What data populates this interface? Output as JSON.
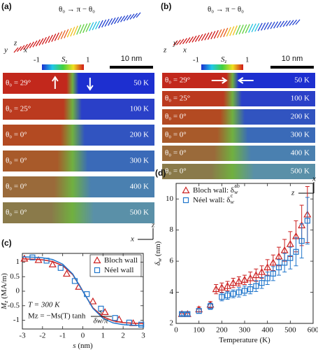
{
  "panel_a": {
    "label": "(a)",
    "formula": "θ₀ → π − θ₀",
    "colorbar": {
      "min": "-1",
      "symbol": "S",
      "sub": "z",
      "max": "1"
    },
    "scale": "10 nm",
    "axes_top": [
      "y",
      "z",
      "x"
    ],
    "axes_bottom": [
      "z",
      "x"
    ],
    "rows": [
      {
        "angle": "θ₀ = 29°",
        "temp": "50 K"
      },
      {
        "angle": "θ₀ = 25°",
        "temp": "100 K"
      },
      {
        "angle": "θ₀ = 0°",
        "temp": "200 K"
      },
      {
        "angle": "θ₀ = 0°",
        "temp": "300 K"
      },
      {
        "angle": "θ₀ = 0°",
        "temp": "400 K"
      },
      {
        "angle": "θ₀ = 0°",
        "temp": "500 K"
      }
    ]
  },
  "panel_b": {
    "label": "(b)",
    "formula": "θ₀ → π − θ₀",
    "colorbar": {
      "min": "-1",
      "symbol": "S",
      "sub": "z",
      "max": "1"
    },
    "scale": "10 nm",
    "axes_top": [
      "z",
      "y",
      "x"
    ],
    "axes_bottom": [
      "x",
      "z"
    ],
    "rows": [
      {
        "angle": "θ₀ = 29°",
        "temp": "50 K"
      },
      {
        "angle": "θ₀ = 25°",
        "temp": "100 K"
      },
      {
        "angle": "θ₀ = 0°",
        "temp": "200 K"
      },
      {
        "angle": "θ₀ = 0°",
        "temp": "300 K"
      },
      {
        "angle": "θ₀ = 0°",
        "temp": "400 K"
      },
      {
        "angle": "θ₀ = 0°",
        "temp": "500 K"
      }
    ]
  },
  "chart_data": [
    {
      "type": "scatter",
      "label": "(c)",
      "x_label": {
        "symbol": "s",
        "unit": " (nm)"
      },
      "y_label": {
        "symbol": "M",
        "sub": "z",
        "unit": " (MA/m)"
      },
      "xlim": [
        -3,
        3
      ],
      "xticks": [
        -3,
        -2,
        -1,
        0,
        1,
        2,
        3
      ],
      "ylim": [
        -1.3,
        1.3
      ],
      "yticks": [
        -1,
        -0.5,
        0,
        0.5,
        1
      ],
      "annotations": [
        "T = 300 K",
        "Mz = −Ms(T) tanh",
        "s",
        "δw/π"
      ],
      "legend": "upper right",
      "series": [
        {
          "name": "Bloch wall",
          "color": "#cc2222",
          "marker": "triangle",
          "x": [
            -2.9,
            -2.2,
            -1.5,
            -0.8,
            -0.2,
            0.5,
            1.1,
            1.8,
            2.5
          ],
          "values": [
            1.12,
            1.07,
            0.92,
            0.6,
            0.15,
            -0.35,
            -0.72,
            -0.97,
            -1.1
          ],
          "fit_x": [
            -3,
            -2.5,
            -2,
            -1.5,
            -1,
            -0.5,
            0,
            0.5,
            1,
            1.5,
            2,
            2.5,
            3
          ],
          "fit_values": [
            1.11,
            1.1,
            1.08,
            1.02,
            0.88,
            0.57,
            0,
            -0.57,
            -0.88,
            -1.02,
            -1.08,
            -1.1,
            -1.11
          ]
        },
        {
          "name": "Néel wall",
          "color": "#2277cc",
          "marker": "square",
          "x": [
            -2.5,
            -1.8,
            -1.1,
            -0.4,
            0.2,
            0.9,
            1.6,
            2.3,
            2.9
          ],
          "values": [
            1.16,
            1.05,
            0.8,
            0.35,
            -0.1,
            -0.6,
            -0.92,
            -1.08,
            -1.15
          ],
          "fit_x": [
            -3,
            -2.5,
            -2,
            -1.5,
            -1,
            -0.5,
            0,
            0.5,
            1,
            1.5,
            2,
            2.5,
            3
          ],
          "fit_values": [
            1.18,
            1.17,
            1.15,
            1.09,
            0.93,
            0.59,
            0,
            -0.59,
            -0.93,
            -1.09,
            -1.15,
            -1.17,
            -1.18
          ]
        }
      ]
    },
    {
      "type": "scatter",
      "label": "(d)",
      "x_label": {
        "symbol": "Temperature",
        "unit": " (K)"
      },
      "y_label": {
        "symbol": "δ",
        "sub": "w",
        "unit": " (nm)"
      },
      "xlim": [
        0,
        600
      ],
      "xticks": [
        0,
        100,
        200,
        300,
        400,
        500,
        600
      ],
      "ylim": [
        2,
        11
      ],
      "yticks": [
        2,
        4,
        6,
        8,
        10
      ],
      "legend": "upper left",
      "series": [
        {
          "name": "Bloch wall: δ",
          "name_sub": "w",
          "name_sup": "ab",
          "color": "#cc2222",
          "marker": "triangle",
          "x": [
            25,
            50,
            100,
            150,
            175,
            200,
            225,
            250,
            275,
            300,
            325,
            350,
            375,
            400,
            425,
            450,
            475,
            500,
            525,
            550,
            575
          ],
          "values": [
            2.6,
            2.6,
            2.9,
            3.2,
            4.2,
            4.3,
            4.4,
            4.6,
            4.7,
            4.8,
            4.9,
            5.1,
            5.3,
            5.6,
            5.9,
            6.3,
            6.7,
            7.1,
            7.6,
            8.3,
            9.0
          ],
          "errors": [
            0.15,
            0.15,
            0.15,
            0.2,
            0.3,
            0.3,
            0.3,
            0.3,
            0.3,
            0.3,
            0.4,
            0.4,
            0.4,
            0.5,
            0.5,
            0.6,
            0.7,
            0.8,
            1.0,
            1.3,
            1.8
          ]
        },
        {
          "name": "Néel wall: δ",
          "name_sub": "w",
          "name_sup": "c",
          "color": "#2277cc",
          "marker": "square",
          "x": [
            25,
            50,
            100,
            150,
            200,
            225,
            250,
            275,
            300,
            325,
            350,
            375,
            400,
            425,
            450,
            475,
            500,
            525,
            550,
            575
          ],
          "values": [
            2.6,
            2.6,
            2.8,
            3.1,
            3.7,
            3.8,
            3.9,
            4.0,
            4.1,
            4.2,
            4.4,
            4.6,
            4.9,
            5.2,
            5.6,
            5.9,
            6.2,
            6.6,
            7.3,
            8.6
          ],
          "errors": [
            0.1,
            0.1,
            0.15,
            0.2,
            0.25,
            0.25,
            0.25,
            0.3,
            0.3,
            0.3,
            0.35,
            0.35,
            0.4,
            0.45,
            0.5,
            0.6,
            0.7,
            0.9,
            1.1,
            1.5
          ]
        }
      ]
    }
  ]
}
